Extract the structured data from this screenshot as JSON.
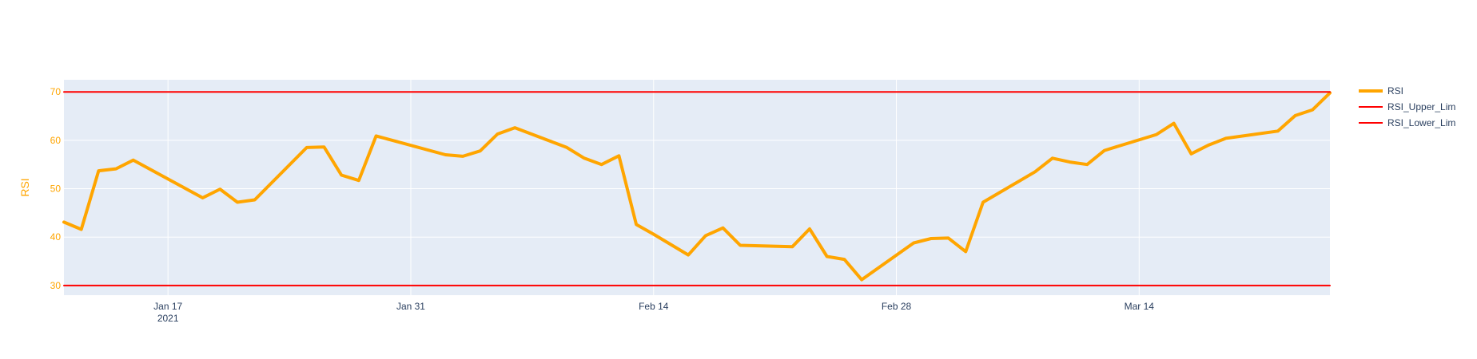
{
  "chart_data": {
    "type": "line",
    "xlabel": "",
    "ylabel": "RSI",
    "ylim": [
      28,
      72.5
    ],
    "xlim": [
      "2021-01-11",
      "2021-03-25"
    ],
    "grid": true,
    "legend_position": "top-right",
    "x_ticks": [
      {
        "date": "2021-01-17",
        "label": "Jan 17",
        "sublabel": "2021"
      },
      {
        "date": "2021-01-31",
        "label": "Jan 31"
      },
      {
        "date": "2021-02-14",
        "label": "Feb 14"
      },
      {
        "date": "2021-02-28",
        "label": "Feb 28"
      },
      {
        "date": "2021-03-14",
        "label": "Mar 14"
      }
    ],
    "y_ticks": [
      30,
      40,
      50,
      60,
      70
    ],
    "series": [
      {
        "name": "RSI",
        "color": "#FFA500",
        "points": [
          [
            "2021-01-11",
            43.1
          ],
          [
            "2021-01-12",
            41.6
          ],
          [
            "2021-01-13",
            53.7
          ],
          [
            "2021-01-14",
            54.1
          ],
          [
            "2021-01-15",
            55.9
          ],
          [
            "2021-01-19",
            48.1
          ],
          [
            "2021-01-20",
            49.9
          ],
          [
            "2021-01-21",
            47.2
          ],
          [
            "2021-01-22",
            47.7
          ],
          [
            "2021-01-25",
            58.5
          ],
          [
            "2021-01-26",
            58.6
          ],
          [
            "2021-01-27",
            52.8
          ],
          [
            "2021-01-28",
            51.7
          ],
          [
            "2021-01-29",
            60.9
          ],
          [
            "2021-02-02",
            57.0
          ],
          [
            "2021-02-03",
            56.7
          ],
          [
            "2021-02-04",
            57.8
          ],
          [
            "2021-02-05",
            61.3
          ],
          [
            "2021-02-06",
            62.6
          ],
          [
            "2021-02-09",
            58.5
          ],
          [
            "2021-02-10",
            56.3
          ],
          [
            "2021-02-11",
            55.0
          ],
          [
            "2021-02-12",
            56.8
          ],
          [
            "2021-02-13",
            42.6
          ],
          [
            "2021-02-14",
            40.6
          ],
          [
            "2021-02-16",
            36.3
          ],
          [
            "2021-02-17",
            40.3
          ],
          [
            "2021-02-18",
            41.9
          ],
          [
            "2021-02-19",
            38.3
          ],
          [
            "2021-02-22",
            38.0
          ],
          [
            "2021-02-23",
            41.7
          ],
          [
            "2021-02-24",
            36.0
          ],
          [
            "2021-02-25",
            35.4
          ],
          [
            "2021-02-26",
            31.2
          ],
          [
            "2021-03-01",
            38.8
          ],
          [
            "2021-03-02",
            39.7
          ],
          [
            "2021-03-03",
            39.8
          ],
          [
            "2021-03-04",
            37.0
          ],
          [
            "2021-03-05",
            47.2
          ],
          [
            "2021-03-08",
            53.5
          ],
          [
            "2021-03-09",
            56.3
          ],
          [
            "2021-03-10",
            55.5
          ],
          [
            "2021-03-11",
            55.0
          ],
          [
            "2021-03-12",
            57.9
          ],
          [
            "2021-03-15",
            61.2
          ],
          [
            "2021-03-16",
            63.5
          ],
          [
            "2021-03-17",
            57.2
          ],
          [
            "2021-03-18",
            59.0
          ],
          [
            "2021-03-19",
            60.4
          ],
          [
            "2021-03-22",
            61.9
          ],
          [
            "2021-03-23",
            65.1
          ],
          [
            "2021-03-24",
            66.3
          ],
          [
            "2021-03-25",
            69.8
          ]
        ]
      },
      {
        "name": "RSI_Upper_Lim",
        "color": "#FF0000",
        "points": [
          [
            "2021-01-11",
            70
          ],
          [
            "2021-03-25",
            70
          ]
        ]
      },
      {
        "name": "RSI_Lower_Lim",
        "color": "#FF0000",
        "points": [
          [
            "2021-01-11",
            30
          ],
          [
            "2021-03-25",
            30
          ]
        ]
      }
    ]
  },
  "colors": {
    "plot_bg": "#E5ECF6",
    "grid": "#FFFFFF",
    "x_tick_text": "#2a3f5f",
    "y_tick_text": "#FFA500",
    "y_label": "#FFA500"
  }
}
